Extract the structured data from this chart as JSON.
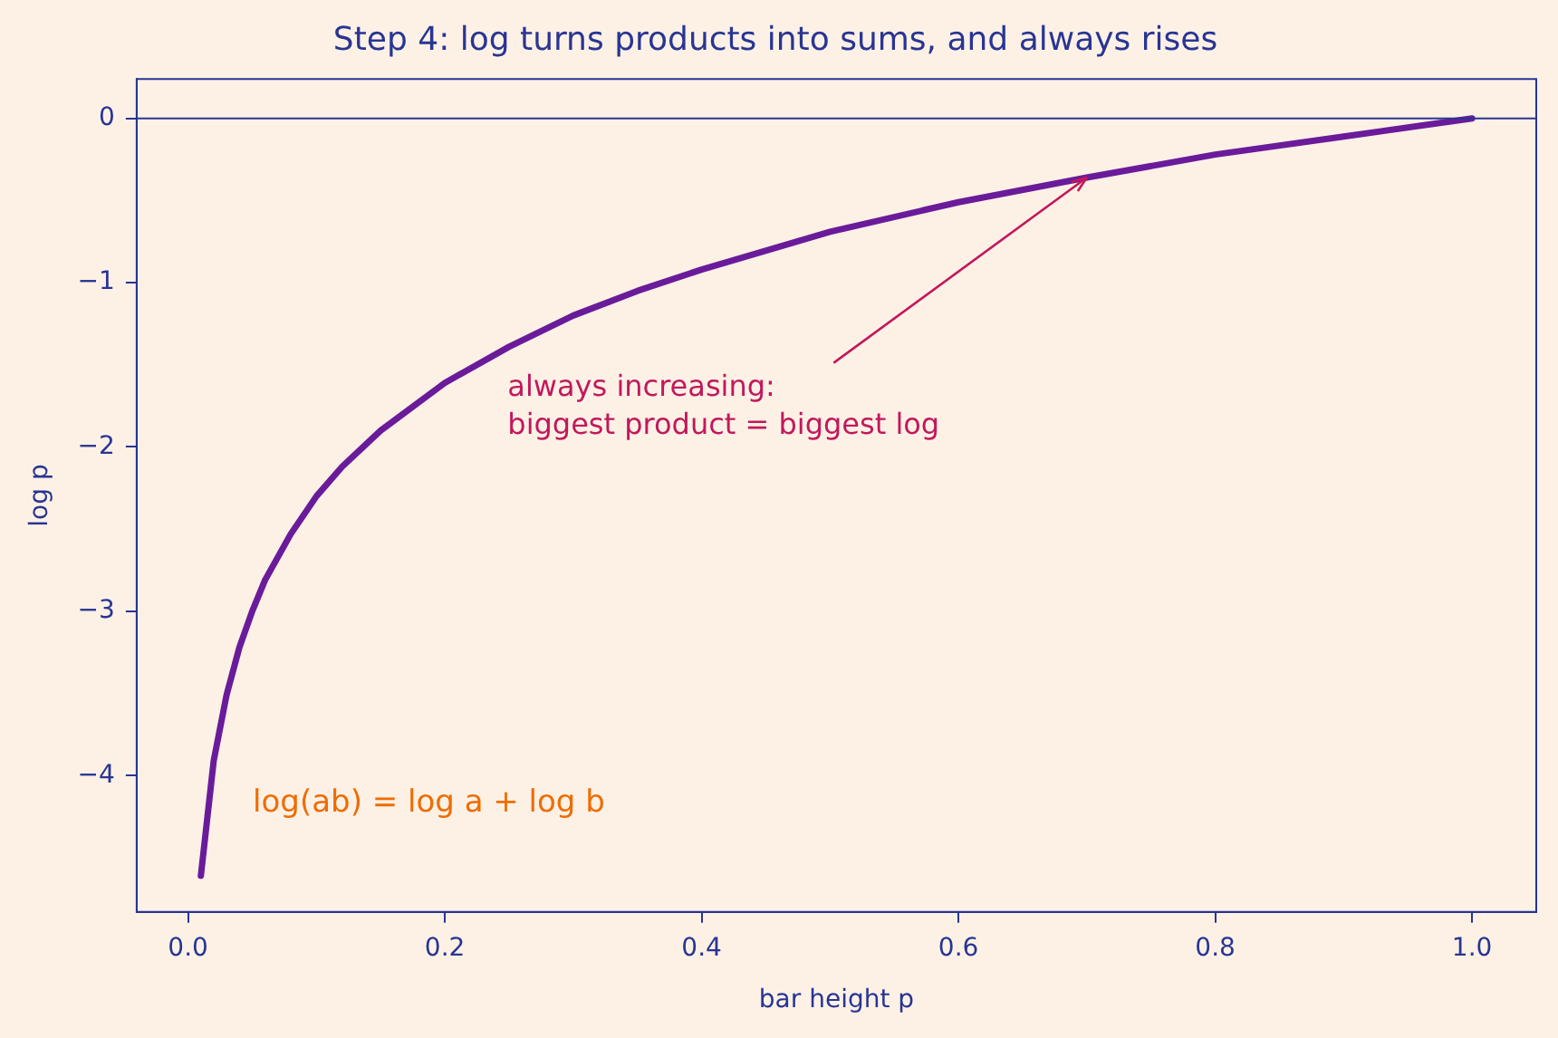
{
  "chart_data": {
    "type": "line",
    "title": "Step 4: log turns products into sums, and always rises",
    "xlabel": "bar height p",
    "ylabel": "log p",
    "x": [
      0.01,
      0.02,
      0.03,
      0.04,
      0.05,
      0.06,
      0.08,
      0.1,
      0.12,
      0.15,
      0.2,
      0.25,
      0.3,
      0.35,
      0.4,
      0.5,
      0.6,
      0.7,
      0.8,
      0.9,
      1.0
    ],
    "series": [
      {
        "color": "#6a1b9a",
        "values": [
          -4.61,
          -3.91,
          -3.51,
          -3.22,
          -3.0,
          -2.81,
          -2.53,
          -2.3,
          -2.12,
          -1.9,
          -1.61,
          -1.39,
          -1.2,
          -1.05,
          -0.92,
          -0.69,
          -0.51,
          -0.36,
          -0.22,
          -0.11,
          0
        ]
      }
    ],
    "xlim": [
      -0.04,
      1.05
    ],
    "ylim": [
      -4.83,
      0.24
    ],
    "xticks": [
      {
        "value": 0,
        "label": "0.0"
      },
      {
        "value": 0.2,
        "label": "0.2"
      },
      {
        "value": 0.4,
        "label": "0.4"
      },
      {
        "value": 0.6,
        "label": "0.6"
      },
      {
        "value": 0.8,
        "label": "0.8"
      },
      {
        "value": 1,
        "label": "1.0"
      }
    ],
    "yticks": [
      {
        "value": -4,
        "label": "−4"
      },
      {
        "value": -3,
        "label": "−3"
      },
      {
        "value": -2,
        "label": "−2"
      },
      {
        "value": -1,
        "label": "−1"
      },
      0
    ],
    "ref_lines": [
      {
        "axis": "y",
        "value": 0,
        "color": "#283593"
      }
    ],
    "annotations": [
      {
        "text": "always increasing:\nbiggest product = biggest log",
        "x": 0.7,
        "y": -0.36
      },
      "log(ab) = log a + log b"
    ],
    "grid": false,
    "legend": false,
    "marker": "none",
    "line_style": "solid"
  }
}
